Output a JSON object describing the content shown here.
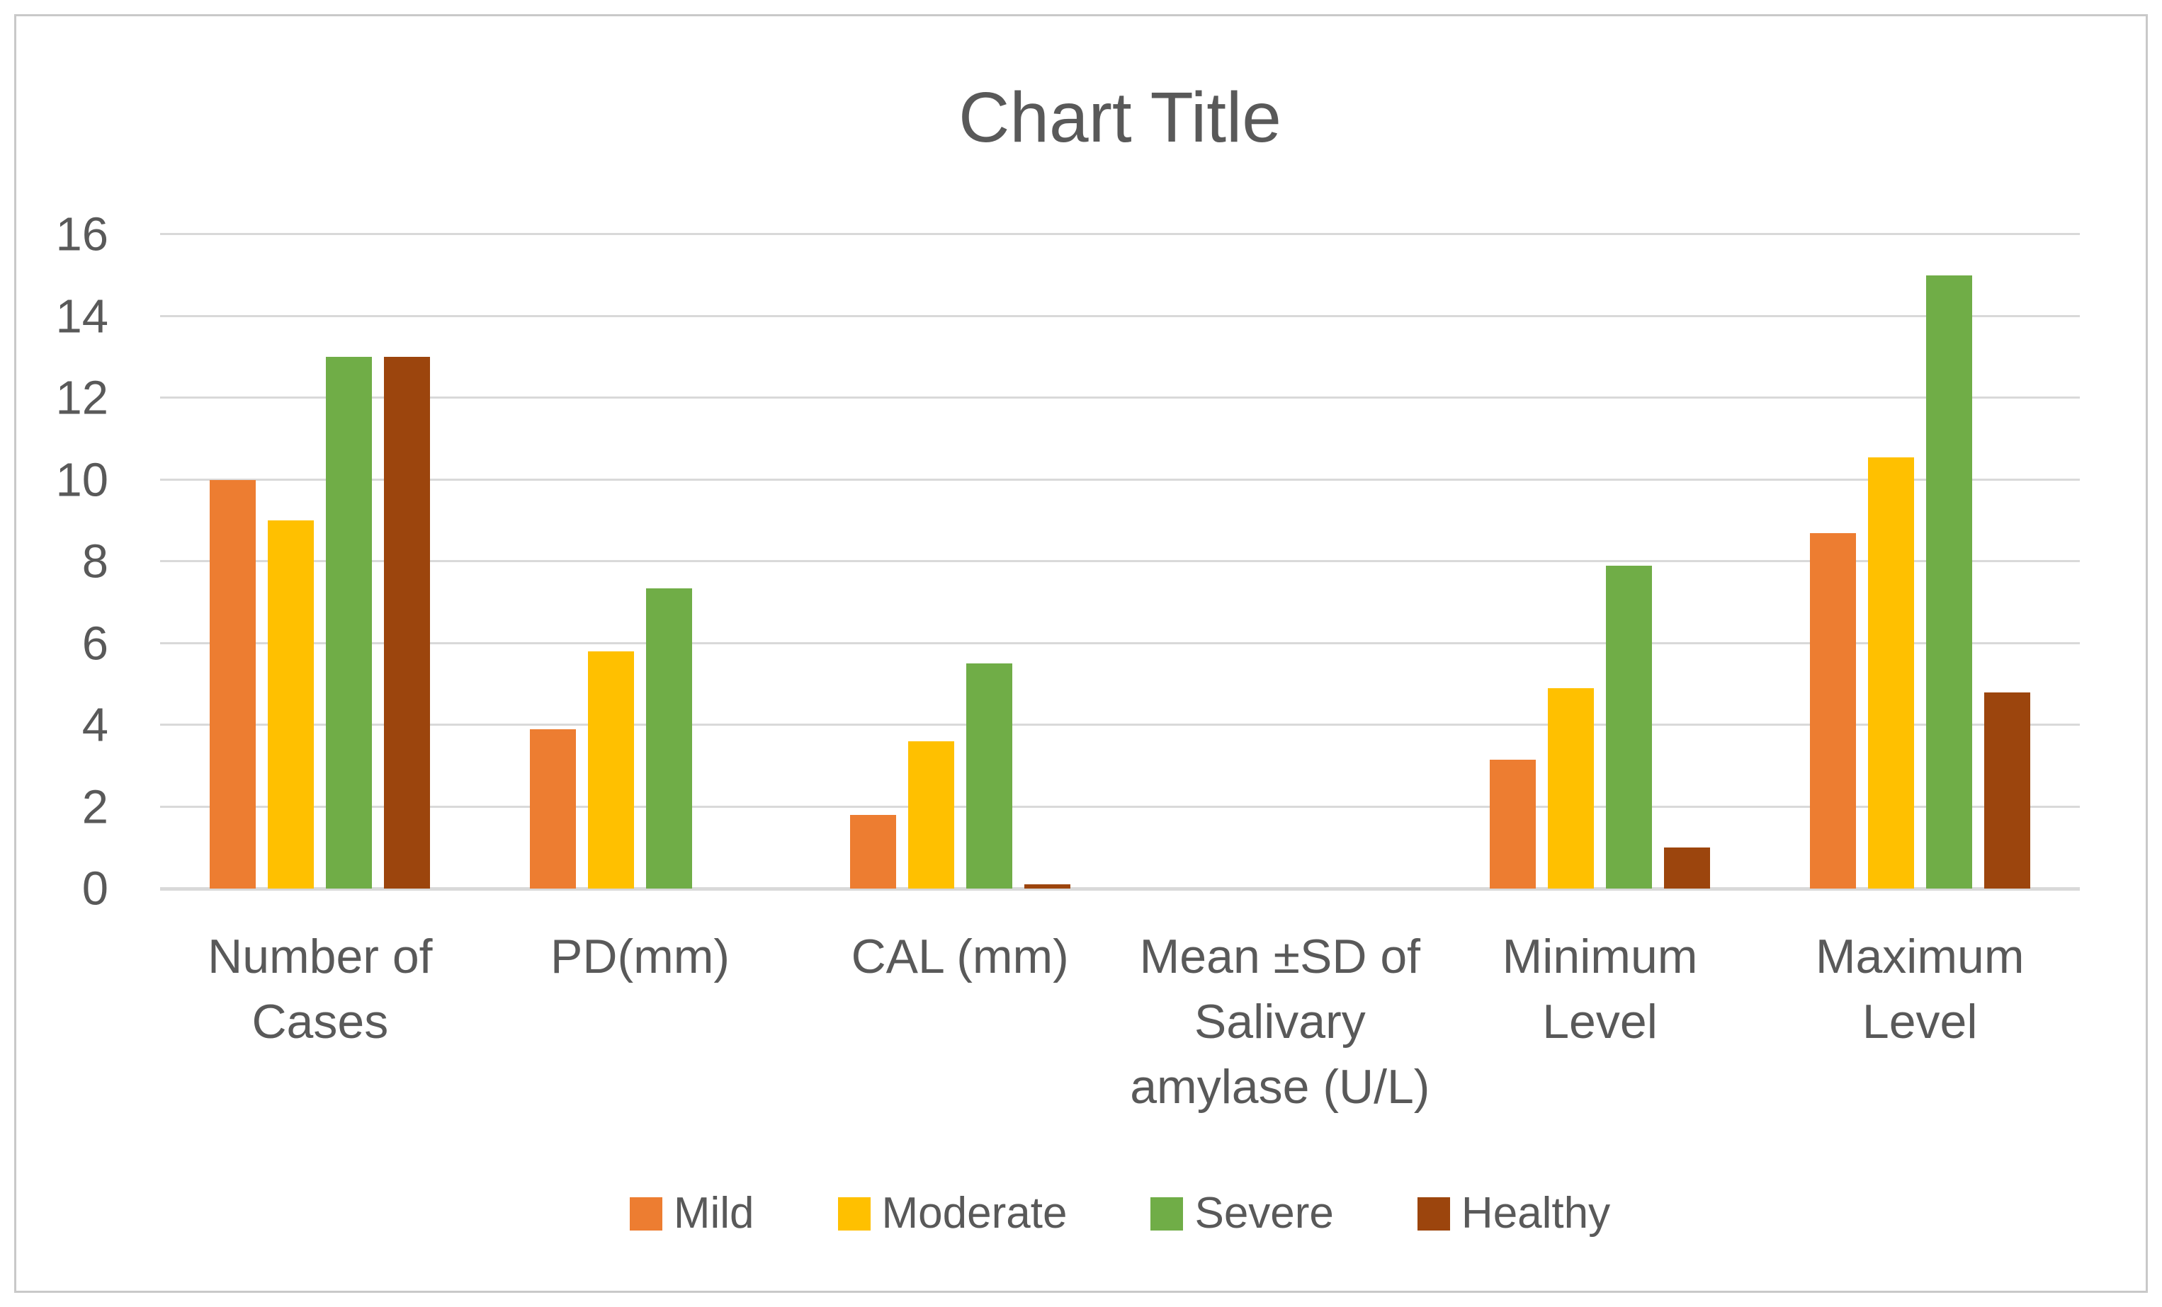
{
  "page": {
    "background": "#FFFFFF",
    "frame_border_color": "#C9C9C9"
  },
  "chart_data": {
    "type": "bar",
    "title": "Chart Title",
    "title_color": "#595959",
    "xlabel": "",
    "ylabel": "",
    "categories": [
      "Number of\nCases",
      "PD(mm)",
      "CAL (mm)",
      "Mean ±SD of\nSalivary\namylase (U/L)",
      "Minimum\nLevel",
      "Maximum\nLevel"
    ],
    "series": [
      {
        "name": "Mild",
        "color": "#ED7D31",
        "values": [
          10,
          3.9,
          1.8,
          0,
          3.15,
          8.7
        ]
      },
      {
        "name": "Moderate",
        "color": "#FFC000",
        "values": [
          9,
          5.8,
          3.6,
          0,
          4.9,
          10.55
        ]
      },
      {
        "name": "Severe",
        "color": "#70AD47",
        "values": [
          13,
          7.35,
          5.5,
          0,
          7.9,
          15
        ]
      },
      {
        "name": "Healthy",
        "color": "#9C450D",
        "values": [
          13,
          0,
          0.1,
          0,
          1,
          4.8
        ]
      }
    ],
    "ylim": [
      0,
      16
    ],
    "yticks": [
      0,
      2,
      4,
      6,
      8,
      10,
      12,
      14,
      16
    ],
    "grid": "horizontal",
    "gridline_color": "#D9D9D9",
    "axis_line_color": "#D9D9D9",
    "axis_text_color": "#595959",
    "legend_position": "bottom"
  }
}
